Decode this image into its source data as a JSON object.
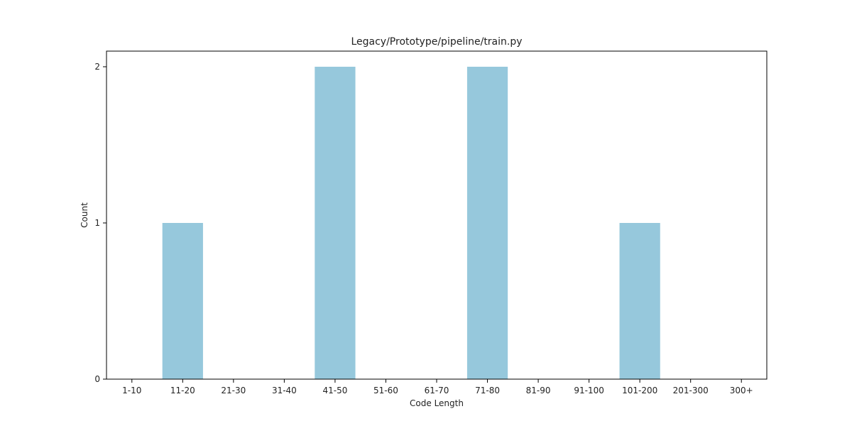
{
  "chart_data": {
    "type": "bar",
    "title": "Legacy/Prototype/pipeline/train.py",
    "xlabel": "Code Length",
    "ylabel": "Count",
    "categories": [
      "1-10",
      "11-20",
      "21-30",
      "31-40",
      "41-50",
      "51-60",
      "61-70",
      "71-80",
      "81-90",
      "91-100",
      "101-200",
      "201-300",
      "300+"
    ],
    "values": [
      0,
      1,
      0,
      0,
      2,
      0,
      0,
      2,
      0,
      0,
      1,
      0,
      0
    ],
    "yticks": [
      "0",
      "1",
      "2"
    ],
    "ylim": [
      0,
      2.1
    ],
    "grid": false,
    "bar_color": "#96c8dc"
  }
}
